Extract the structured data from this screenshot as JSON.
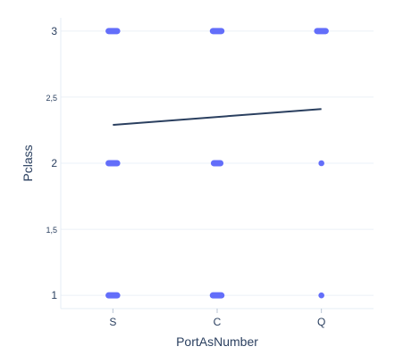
{
  "chart_data": {
    "type": "scatter",
    "xlabel": "PortAsNumber",
    "ylabel": "Pclass",
    "categories": [
      "S",
      "C",
      "Q"
    ],
    "y_ticks": [
      {
        "value": 1,
        "label": "1"
      },
      {
        "value": 1.5,
        "label": "1,5"
      },
      {
        "value": 2,
        "label": "2"
      },
      {
        "value": 2.5,
        "label": "2,5"
      },
      {
        "value": 3,
        "label": "3"
      }
    ],
    "ylim": [
      0.9,
      3.1
    ],
    "grid": true,
    "point_color": "#636efa",
    "line_color": "#2a3f5f",
    "points": [
      {
        "category": "S",
        "y": 3,
        "spread": 0.09
      },
      {
        "category": "C",
        "y": 3,
        "spread": 0.09
      },
      {
        "category": "Q",
        "y": 3,
        "spread": 0.09
      },
      {
        "category": "S",
        "y": 2,
        "spread": 0.09
      },
      {
        "category": "C",
        "y": 2,
        "spread": 0.07
      },
      {
        "category": "Q",
        "y": 2,
        "spread": 0
      },
      {
        "category": "S",
        "y": 1,
        "spread": 0.09
      },
      {
        "category": "C",
        "y": 1,
        "spread": 0.09
      },
      {
        "category": "Q",
        "y": 1,
        "spread": 0
      }
    ],
    "trend_line": {
      "x": [
        "S",
        "Q"
      ],
      "y": [
        2.29,
        2.41
      ]
    }
  }
}
